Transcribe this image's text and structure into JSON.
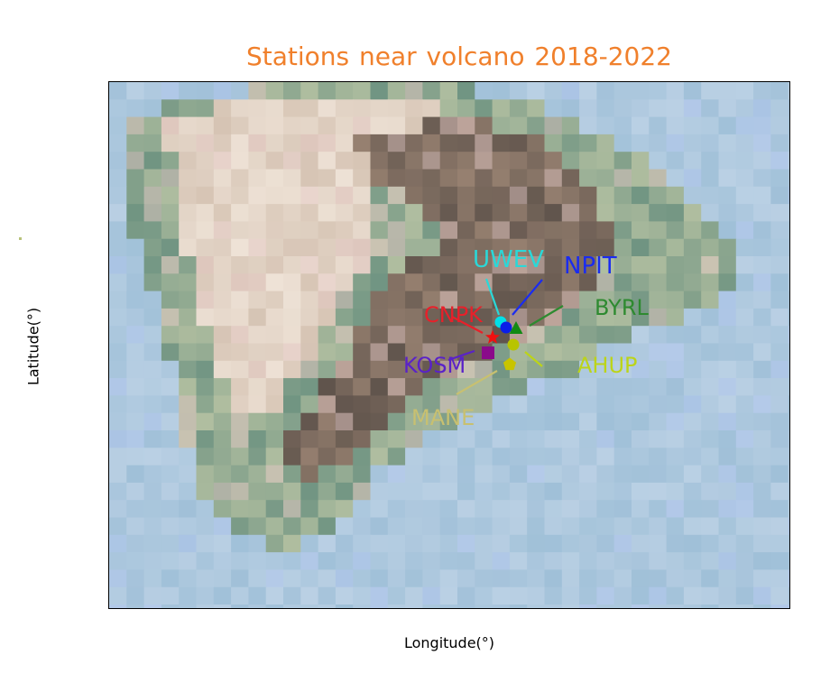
{
  "chart_data": {
    "type": "scatter",
    "title": "Stations near volcano  2018-2022",
    "xlabel": "Longitude(°)",
    "ylabel": "Latitude(°)",
    "title_color": "#f0802c",
    "background": "pixelated terrain map",
    "series": [
      {
        "name": "UWEV",
        "marker": "circle",
        "color": "#00e0e8",
        "label_color": "#2ad8d8"
      },
      {
        "name": "NPIT",
        "marker": "circle",
        "color": "#0a1ee8",
        "label_color": "#1a2cf0"
      },
      {
        "name": "BYRL",
        "marker": "triangle",
        "color": "#128a14",
        "label_color": "#2e8a30"
      },
      {
        "name": "CNPK",
        "marker": "star",
        "color": "#f01010",
        "label_color": "#e8202a"
      },
      {
        "name": "AHUP",
        "marker": "circle",
        "color": "#b8c400",
        "label_color": "#bcd418"
      },
      {
        "name": "KOSM",
        "marker": "square",
        "color": "#8a0a8a",
        "label_color": "#5a22c8"
      },
      {
        "name": "MANE",
        "marker": "pentagon",
        "color": "#c8c400",
        "label_color": "#c8c070"
      }
    ]
  }
}
